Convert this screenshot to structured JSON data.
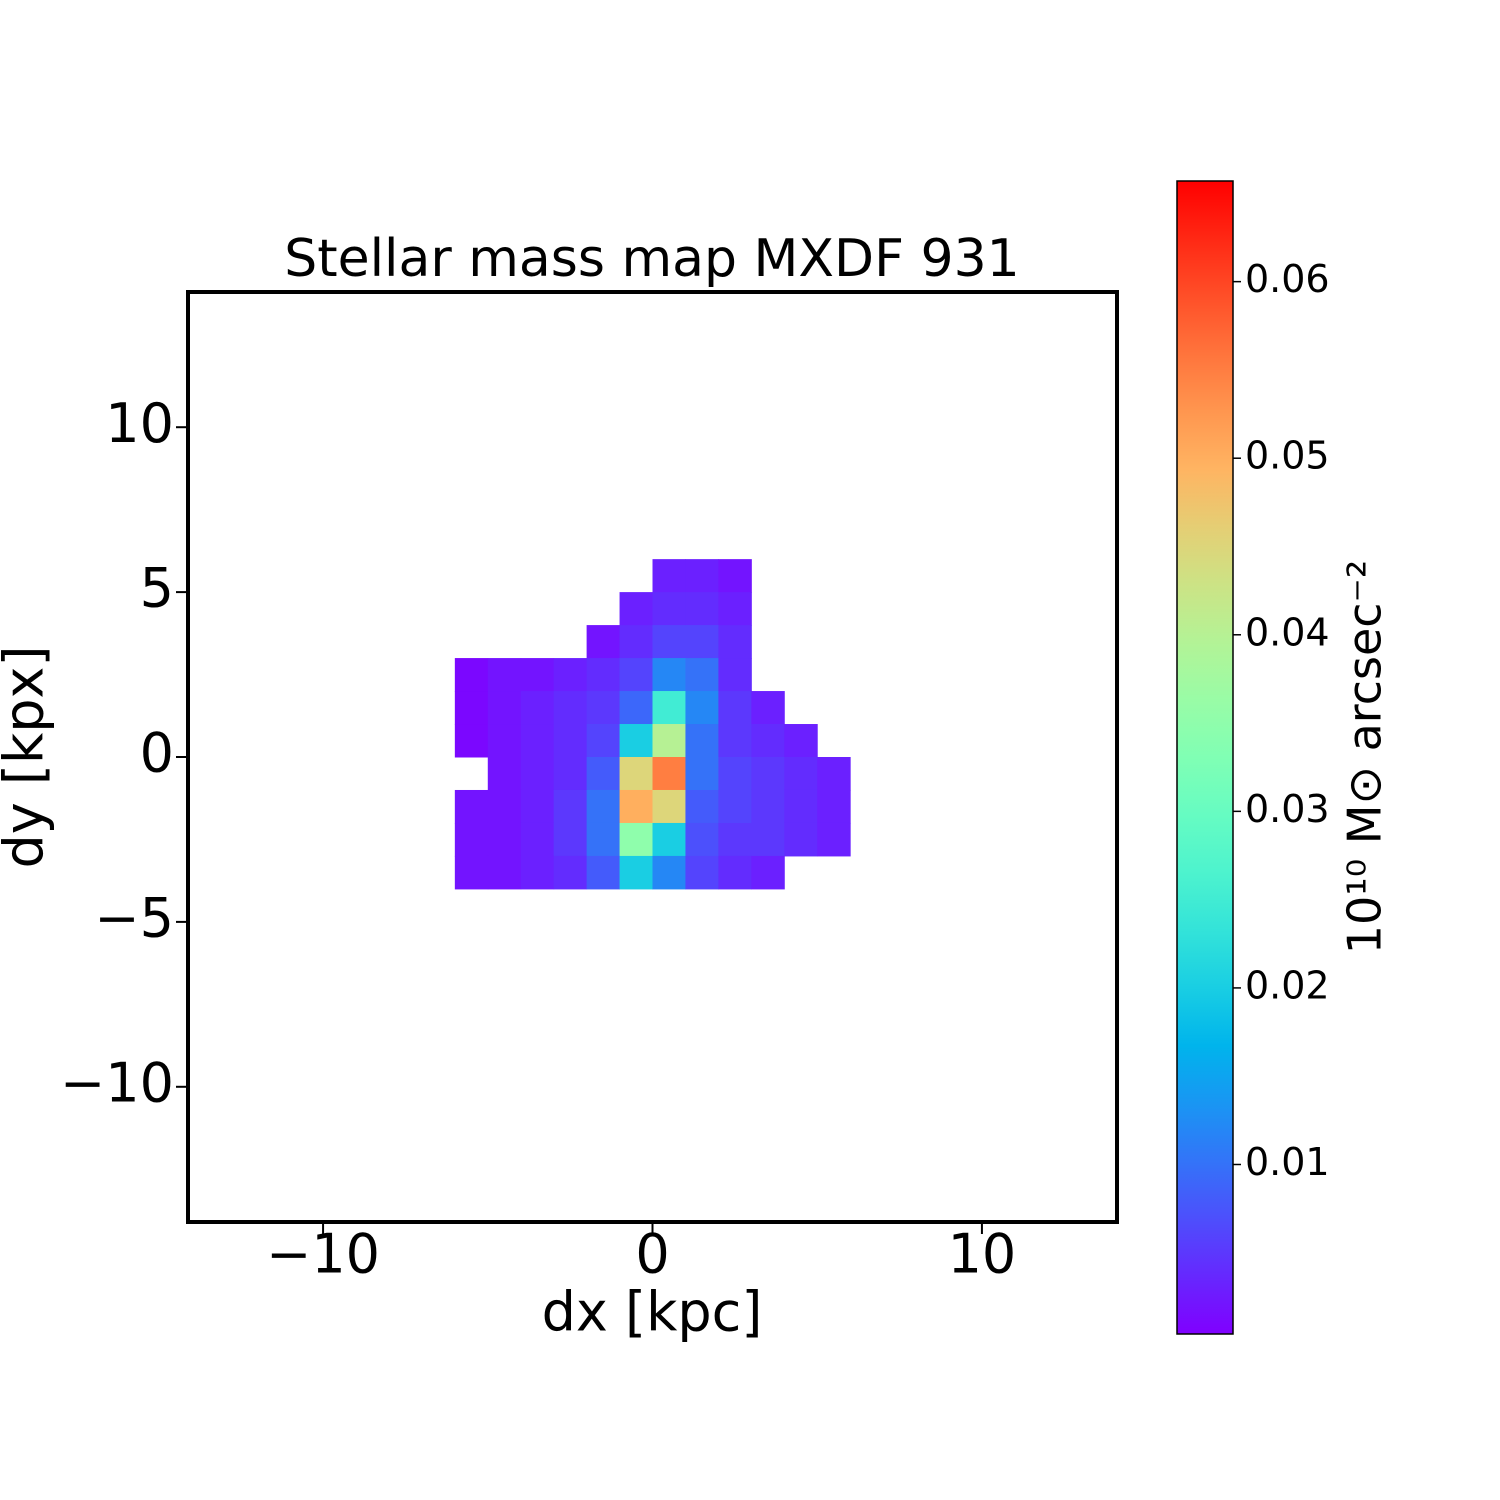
{
  "chart_data": {
    "type": "heatmap",
    "title": "Stellar mass map MXDF 931",
    "x_label": "dx [kpc]",
    "y_label": "dy [kpx]",
    "colorbar_label": "10¹⁰ M⊙ arcsec⁻²",
    "colormap": "rainbow",
    "xlim": [
      -14.1,
      14.1
    ],
    "ylim": [
      -14.1,
      14.1
    ],
    "xticks": [
      {
        "value": -10,
        "label": "−10"
      },
      0,
      10
    ],
    "yticks": [
      {
        "value": -10,
        "label": "−10"
      },
      {
        "value": -5,
        "label": "−5"
      },
      0,
      5,
      10
    ],
    "clim": [
      0.0004,
      0.0657
    ],
    "cticks": [
      0.01,
      0.02,
      0.03,
      0.04,
      0.05,
      0.06
    ],
    "x": [
      -5.5,
      -4.5,
      -3.5,
      -2.5,
      -1.5,
      -0.5,
      0.5,
      1.5,
      2.5,
      3.5,
      4.5,
      5.5
    ],
    "y": [
      5.5,
      4.5,
      3.5,
      2.5,
      1.5,
      0.5,
      -0.5,
      -1.5,
      -2.5,
      -3.5
    ],
    "z": [
      [
        null,
        null,
        null,
        null,
        null,
        null,
        0.003,
        0.003,
        0.002,
        null,
        null,
        null
      ],
      [
        null,
        null,
        null,
        null,
        null,
        0.003,
        0.004,
        0.004,
        0.003,
        null,
        null,
        null
      ],
      [
        null,
        null,
        null,
        null,
        0.002,
        0.004,
        0.006,
        0.006,
        0.004,
        null,
        null,
        null
      ],
      [
        0.001,
        0.002,
        0.002,
        0.003,
        0.004,
        0.006,
        0.012,
        0.01,
        0.004,
        null,
        null,
        null
      ],
      [
        0.001,
        0.002,
        0.003,
        0.004,
        0.005,
        0.009,
        0.025,
        0.012,
        0.005,
        0.003,
        null,
        null
      ],
      [
        0.001,
        0.002,
        0.003,
        0.004,
        0.006,
        0.02,
        0.04,
        0.01,
        0.005,
        0.004,
        0.003,
        null
      ],
      [
        null,
        0.002,
        0.003,
        0.004,
        0.008,
        0.045,
        0.055,
        0.01,
        0.006,
        0.005,
        0.004,
        0.003
      ],
      [
        0.002,
        0.002,
        0.003,
        0.005,
        0.01,
        0.05,
        0.045,
        0.008,
        0.006,
        0.005,
        0.004,
        0.003
      ],
      [
        0.002,
        0.002,
        0.003,
        0.005,
        0.01,
        0.035,
        0.02,
        0.007,
        0.005,
        0.005,
        0.004,
        0.003
      ],
      [
        0.002,
        0.002,
        0.003,
        0.004,
        0.008,
        0.02,
        0.012,
        0.006,
        0.004,
        0.003,
        null,
        null
      ]
    ]
  }
}
